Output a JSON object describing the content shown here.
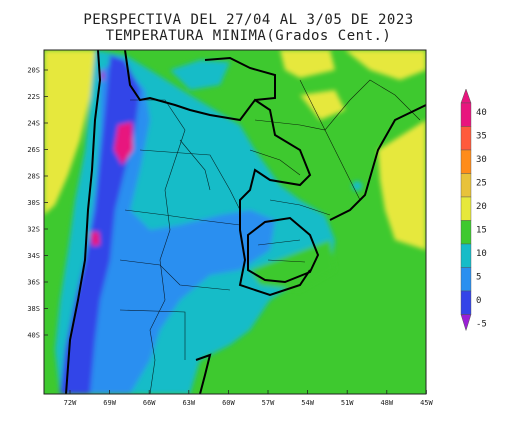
{
  "title_line1": "PERSPECTIVA DEL 27/04 AL 3/05 DE 2023",
  "title_line2": "TEMPERATURA MINIMA(Grados Cent.)",
  "lat_labels": [
    "20S",
    "22S",
    "24S",
    "26S",
    "28S",
    "30S",
    "32S",
    "34S",
    "36S",
    "38S",
    "40S"
  ],
  "lon_labels": [
    "72W",
    "69W",
    "66W",
    "63W",
    "60W",
    "57W",
    "54W",
    "51W",
    "48W",
    "45W"
  ],
  "colorbar": {
    "labels": [
      "40",
      "35",
      "30",
      "25",
      "20",
      "15",
      "10",
      "5",
      "0",
      "-5"
    ],
    "colors": [
      "#e8157e",
      "#ff5a3c",
      "#ff8c1a",
      "#e8c23a",
      "#e6e83c",
      "#3ec92f",
      "#16bcc8",
      "#2a8ff0",
      "#3344e8",
      "#9b1fd6"
    ]
  }
}
